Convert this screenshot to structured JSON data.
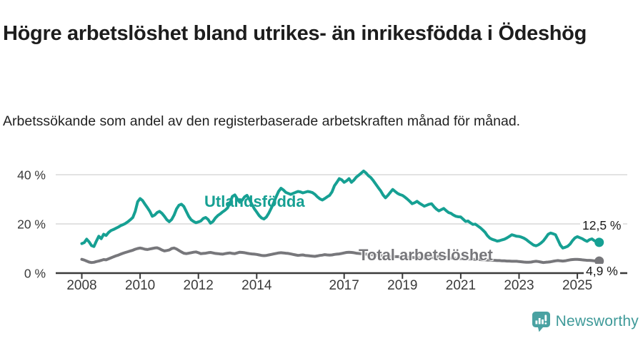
{
  "title": "Högre arbetslöshet bland utrikes- än inrikesfödda i Ödeshög",
  "subtitle": "Arbetssökande som andel av den registerbaserade arbetskraften månad för månad.",
  "footer": {
    "brand": "Newsworthy"
  },
  "colors": {
    "accent_teal": "#16a093",
    "line_gray": "#77777b",
    "axis": "#3a3a3a",
    "gridline": "#d8d8d8",
    "text_dark": "#1d1d1d"
  },
  "chart_data": {
    "type": "line",
    "unit": "percent",
    "frequency": "monthly",
    "x_start": "2008-01",
    "x_end": "2025-10",
    "x_tick_labels": [
      "2008",
      "2010",
      "2012",
      "2014",
      "2017",
      "2019",
      "2021",
      "2023",
      "2025"
    ],
    "x_tick_years": [
      2008,
      2010,
      2012,
      2014,
      2017,
      2019,
      2021,
      2023,
      2025
    ],
    "y_tick_labels": [
      "0 %",
      "20 %",
      "40 %"
    ],
    "y_tick_values": [
      0,
      20,
      40
    ],
    "ylim": [
      0,
      44
    ],
    "grid": "horizontal",
    "legend_position": "inline-labels",
    "series": [
      {
        "name": "Utlandsfödda",
        "color": "#16a093",
        "end_label": "12,5 %",
        "last_value": 12.5,
        "values": [
          12.0,
          12.4,
          13.8,
          12.7,
          11.2,
          10.8,
          13.0,
          15.0,
          14.0,
          15.8,
          15.3,
          16.5,
          17.3,
          17.7,
          18.2,
          18.7,
          19.3,
          19.7,
          20.2,
          20.9,
          21.7,
          22.6,
          25.1,
          29.0,
          30.3,
          29.5,
          28.0,
          26.6,
          25.1,
          23.1,
          23.6,
          24.6,
          25.1,
          24.3,
          23.1,
          21.7,
          20.9,
          21.8,
          23.6,
          26.1,
          27.6,
          28.0,
          27.1,
          25.1,
          23.1,
          21.7,
          21.0,
          20.5,
          20.8,
          21.2,
          22.2,
          22.6,
          21.8,
          20.3,
          21.0,
          22.4,
          23.4,
          24.1,
          24.9,
          25.6,
          26.5,
          28.6,
          31.2,
          31.8,
          30.2,
          28.8,
          29.6,
          31.0,
          31.6,
          30.0,
          28.0,
          26.2,
          24.8,
          23.4,
          22.4,
          22.0,
          22.8,
          24.4,
          26.4,
          28.6,
          31.0,
          33.2,
          34.5,
          33.8,
          32.8,
          32.4,
          32.0,
          32.4,
          32.8,
          33.2,
          33.0,
          32.6,
          32.9,
          33.2,
          33.0,
          32.7,
          32.0,
          31.0,
          30.2,
          29.7,
          30.3,
          31.0,
          31.6,
          33.0,
          35.5,
          36.9,
          38.4,
          37.9,
          36.9,
          37.5,
          38.4,
          36.9,
          37.8,
          39.0,
          39.8,
          40.6,
          41.5,
          40.7,
          39.6,
          38.8,
          37.6,
          36.2,
          34.8,
          33.5,
          31.8,
          30.6,
          31.6,
          32.8,
          34.0,
          33.2,
          32.4,
          31.9,
          31.6,
          30.9,
          30.1,
          29.2,
          28.2,
          28.6,
          29.2,
          28.4,
          27.8,
          27.2,
          27.6,
          28.0,
          28.2,
          27.0,
          26.0,
          25.3,
          25.8,
          26.3,
          25.4,
          24.6,
          24.3,
          23.6,
          23.1,
          22.9,
          22.8,
          21.9,
          21.0,
          21.2,
          20.4,
          19.8,
          19.9,
          19.2,
          18.5,
          17.6,
          16.6,
          15.2,
          14.2,
          13.7,
          13.4,
          13.0,
          13.2,
          13.5,
          13.8,
          14.3,
          14.9,
          15.6,
          15.3,
          15.0,
          14.9,
          14.6,
          14.2,
          13.6,
          12.8,
          12.1,
          11.4,
          11.1,
          11.5,
          12.2,
          13.1,
          14.4,
          15.8,
          16.3,
          16.0,
          15.6,
          13.5,
          11.4,
          10.2,
          10.5,
          10.9,
          11.8,
          13.2,
          14.3,
          14.8,
          14.4,
          14.0,
          13.4,
          12.9,
          13.6,
          13.9,
          13.2,
          12.7,
          12.5
        ]
      },
      {
        "name": "Total arbetslöshet",
        "color": "#77777b",
        "end_label": "4,9 %",
        "last_value": 4.9,
        "values": [
          5.6,
          5.3,
          4.9,
          4.5,
          4.3,
          4.4,
          4.7,
          4.9,
          5.2,
          5.5,
          5.4,
          5.8,
          6.2,
          6.6,
          7.0,
          7.3,
          7.7,
          8.1,
          8.4,
          8.7,
          9.0,
          9.3,
          9.7,
          10.0,
          10.2,
          10.0,
          9.7,
          9.6,
          9.8,
          10.0,
          10.2,
          10.3,
          9.9,
          9.4,
          9.0,
          9.2,
          9.4,
          10.0,
          10.2,
          9.8,
          9.2,
          8.6,
          8.1,
          7.9,
          8.1,
          8.3,
          8.5,
          8.6,
          8.3,
          7.9,
          8.0,
          8.1,
          8.3,
          8.4,
          8.2,
          8.0,
          7.9,
          7.8,
          7.7,
          7.9,
          8.1,
          8.2,
          8.0,
          7.9,
          8.2,
          8.5,
          8.4,
          8.3,
          8.1,
          7.9,
          7.8,
          7.7,
          7.6,
          7.4,
          7.2,
          7.1,
          7.2,
          7.4,
          7.6,
          7.8,
          8.0,
          8.2,
          8.3,
          8.2,
          8.1,
          8.0,
          7.8,
          7.6,
          7.4,
          7.2,
          7.3,
          7.4,
          7.2,
          7.1,
          7.0,
          6.9,
          6.8,
          7.0,
          7.2,
          7.3,
          7.5,
          7.4,
          7.3,
          7.4,
          7.6,
          7.7,
          7.8,
          8.0,
          8.2,
          8.4,
          8.5,
          8.4,
          8.3,
          8.1,
          8.0,
          7.9,
          7.8,
          7.7,
          7.6,
          7.5,
          7.4,
          7.3,
          7.2,
          7.1,
          7.0,
          6.9,
          6.9,
          6.8,
          6.8,
          6.7,
          6.7,
          6.6,
          6.6,
          6.5,
          6.5,
          6.4,
          6.4,
          6.3,
          6.3,
          6.2,
          6.2,
          6.1,
          6.1,
          6.0,
          6.2,
          6.4,
          6.6,
          6.7,
          6.6,
          6.5,
          6.4,
          6.3,
          6.2,
          6.1,
          6.0,
          5.9,
          5.9,
          5.8,
          5.8,
          5.7,
          5.7,
          5.6,
          5.6,
          5.5,
          5.5,
          5.4,
          5.4,
          5.3,
          5.3,
          5.2,
          5.2,
          5.1,
          5.1,
          5.0,
          5.0,
          4.9,
          4.9,
          4.8,
          4.8,
          4.8,
          4.7,
          4.6,
          4.5,
          4.4,
          4.4,
          4.5,
          4.7,
          4.8,
          4.7,
          4.5,
          4.3,
          4.4,
          4.5,
          4.6,
          4.8,
          5.0,
          5.1,
          5.0,
          4.9,
          5.0,
          5.2,
          5.4,
          5.5,
          5.6,
          5.6,
          5.5,
          5.4,
          5.3,
          5.2,
          5.2,
          5.1,
          5.0,
          5.0,
          4.9
        ]
      }
    ]
  }
}
